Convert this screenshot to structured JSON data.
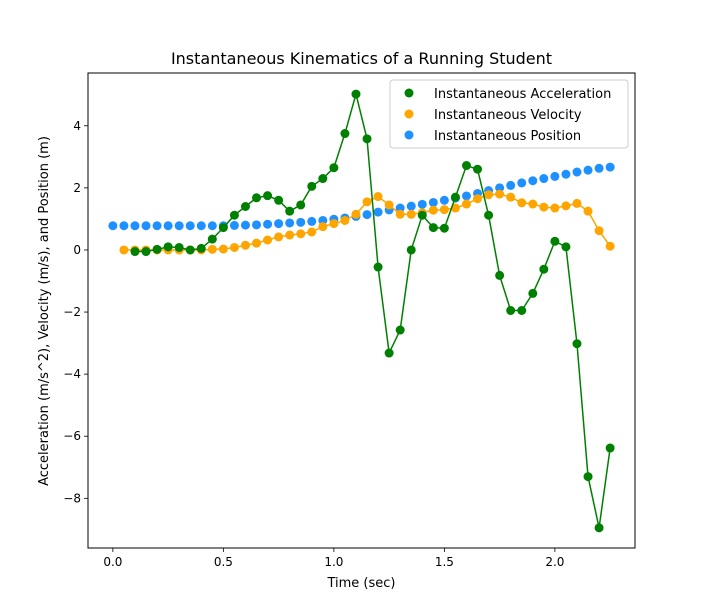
{
  "chart_data": {
    "type": "scatter",
    "title": "Instantaneous Kinematics of a Running Student",
    "xlabel": "Time (sec)",
    "ylabel": "Acceleration (m/s^2), Velocity (m/s), and Position (m)",
    "xlim": [
      -0.1125,
      2.3625
    ],
    "ylim": [
      -9.6,
      5.7
    ],
    "xticks": [
      0.0,
      0.5,
      1.0,
      1.5,
      2.0
    ],
    "xtick_labels": [
      "0.0",
      "0.5",
      "1.0",
      "1.5",
      "2.0"
    ],
    "yticks": [
      -8,
      -6,
      -4,
      -2,
      0,
      2,
      4
    ],
    "ytick_labels": [
      "−8",
      "−6",
      "−4",
      "−2",
      "0",
      "2",
      "4"
    ],
    "grid": false,
    "legend_position": "top-right",
    "series": [
      {
        "name": "Instantaneous Acceleration",
        "color": "#008000",
        "connected": true,
        "x": [
          0.1,
          0.15,
          0.2,
          0.25,
          0.3,
          0.35,
          0.4,
          0.45,
          0.5,
          0.55,
          0.6,
          0.65,
          0.7,
          0.75,
          0.8,
          0.85,
          0.9,
          0.95,
          1.0,
          1.05,
          1.1,
          1.15,
          1.2,
          1.25,
          1.3,
          1.35,
          1.4,
          1.45,
          1.5,
          1.55,
          1.6,
          1.65,
          1.7,
          1.75,
          1.8,
          1.85,
          1.9,
          1.95,
          2.0,
          2.05,
          2.1,
          2.15,
          2.2,
          2.25
        ],
        "y": [
          -0.05,
          -0.05,
          0.02,
          0.1,
          0.08,
          0.0,
          0.05,
          0.35,
          0.72,
          1.12,
          1.4,
          1.68,
          1.75,
          1.6,
          1.25,
          1.45,
          2.05,
          2.3,
          2.65,
          3.75,
          5.02,
          3.58,
          -0.55,
          -3.32,
          -2.58,
          0.0,
          1.12,
          0.72,
          0.7,
          1.7,
          2.72,
          2.6,
          1.12,
          -0.82,
          -1.95,
          -1.95,
          -1.4,
          -0.62,
          0.28,
          0.1,
          -3.02,
          -7.3,
          -8.95,
          -6.38
        ]
      },
      {
        "name": "Instantaneous Velocity",
        "color": "#FFA500",
        "connected": true,
        "x": [
          0.05,
          0.1,
          0.15,
          0.2,
          0.25,
          0.3,
          0.35,
          0.4,
          0.45,
          0.5,
          0.55,
          0.6,
          0.65,
          0.7,
          0.75,
          0.8,
          0.85,
          0.9,
          0.95,
          1.0,
          1.05,
          1.1,
          1.15,
          1.2,
          1.25,
          1.3,
          1.35,
          1.4,
          1.45,
          1.5,
          1.55,
          1.6,
          1.65,
          1.7,
          1.75,
          1.8,
          1.85,
          1.9,
          1.95,
          2.0,
          2.05,
          2.1,
          2.15,
          2.2,
          2.25
        ],
        "y": [
          0.0,
          0.0,
          0.0,
          0.0,
          0.0,
          0.0,
          0.0,
          0.0,
          0.02,
          0.03,
          0.08,
          0.15,
          0.22,
          0.32,
          0.42,
          0.48,
          0.52,
          0.58,
          0.75,
          0.85,
          0.95,
          1.15,
          1.55,
          1.72,
          1.45,
          1.15,
          1.15,
          1.2,
          1.28,
          1.3,
          1.35,
          1.48,
          1.65,
          1.78,
          1.8,
          1.7,
          1.52,
          1.48,
          1.38,
          1.35,
          1.42,
          1.5,
          1.25,
          0.62,
          0.12
        ]
      },
      {
        "name": "Instantaneous Position",
        "color": "#1E90FF",
        "connected": false,
        "x": [
          0.0,
          0.05,
          0.1,
          0.15,
          0.2,
          0.25,
          0.3,
          0.35,
          0.4,
          0.45,
          0.5,
          0.55,
          0.6,
          0.65,
          0.7,
          0.75,
          0.8,
          0.85,
          0.9,
          0.95,
          1.0,
          1.05,
          1.1,
          1.15,
          1.2,
          1.25,
          1.3,
          1.35,
          1.4,
          1.45,
          1.5,
          1.55,
          1.6,
          1.65,
          1.7,
          1.75,
          1.8,
          1.85,
          1.9,
          1.95,
          2.0,
          2.05,
          2.1,
          2.15,
          2.2,
          2.25
        ],
        "y": [
          0.78,
          0.78,
          0.78,
          0.78,
          0.78,
          0.78,
          0.78,
          0.78,
          0.78,
          0.78,
          0.78,
          0.79,
          0.8,
          0.81,
          0.83,
          0.85,
          0.87,
          0.89,
          0.92,
          0.95,
          0.99,
          1.03,
          1.08,
          1.14,
          1.22,
          1.29,
          1.35,
          1.41,
          1.47,
          1.53,
          1.6,
          1.67,
          1.74,
          1.82,
          1.91,
          2.0,
          2.08,
          2.16,
          2.23,
          2.3,
          2.37,
          2.44,
          2.51,
          2.57,
          2.63,
          2.67
        ]
      }
    ]
  }
}
